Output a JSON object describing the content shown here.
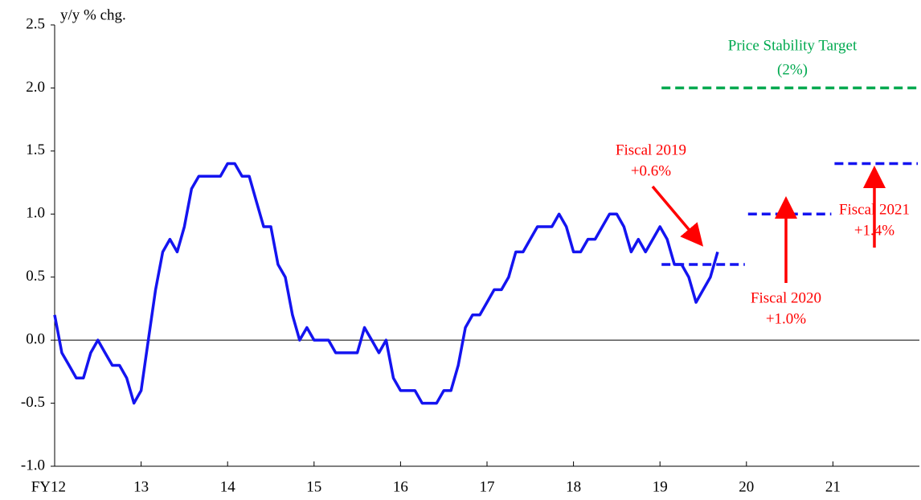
{
  "chart_data": {
    "type": "line",
    "y_label": "y/y % chg.",
    "x": [
      12,
      12.083,
      12.167,
      12.25,
      12.333,
      12.417,
      12.5,
      12.583,
      12.667,
      12.75,
      12.833,
      12.917,
      13,
      13.083,
      13.167,
      13.25,
      13.333,
      13.417,
      13.5,
      13.583,
      13.667,
      13.75,
      13.833,
      13.917,
      14,
      14.083,
      14.167,
      14.25,
      14.333,
      14.417,
      14.5,
      14.583,
      14.667,
      14.75,
      14.833,
      14.917,
      15,
      15.083,
      15.167,
      15.25,
      15.333,
      15.417,
      15.5,
      15.583,
      15.667,
      15.75,
      15.833,
      15.917,
      16,
      16.083,
      16.167,
      16.25,
      16.333,
      16.417,
      16.5,
      16.583,
      16.667,
      16.75,
      16.833,
      16.917,
      17,
      17.083,
      17.167,
      17.25,
      17.333,
      17.417,
      17.5,
      17.583,
      17.667,
      17.75,
      17.833,
      17.917,
      18,
      18.083,
      18.167,
      18.25,
      18.333,
      18.417,
      18.5,
      18.583,
      18.667,
      18.75,
      18.833,
      18.917,
      19,
      19.083,
      19.167,
      19.25,
      19.333,
      19.417,
      19.5,
      19.583,
      19.667
    ],
    "series": [
      {
        "color": "#1414f0",
        "values": [
          0.2,
          -0.1,
          -0.2,
          -0.3,
          -0.3,
          -0.1,
          0.0,
          -0.1,
          -0.2,
          -0.2,
          -0.3,
          -0.5,
          -0.4,
          0.0,
          0.4,
          0.7,
          0.8,
          0.7,
          0.9,
          1.2,
          1.3,
          1.3,
          1.3,
          1.3,
          1.4,
          1.4,
          1.3,
          1.3,
          1.1,
          0.9,
          0.9,
          0.6,
          0.5,
          0.2,
          0.0,
          0.1,
          0.0,
          0.0,
          0.0,
          -0.1,
          -0.1,
          -0.1,
          -0.1,
          0.1,
          0.0,
          -0.1,
          0.0,
          -0.3,
          -0.4,
          -0.4,
          -0.4,
          -0.5,
          -0.5,
          -0.5,
          -0.4,
          -0.4,
          -0.2,
          0.1,
          0.2,
          0.2,
          0.3,
          0.4,
          0.4,
          0.5,
          0.7,
          0.7,
          0.8,
          0.9,
          0.9,
          0.9,
          1.0,
          0.9,
          0.7,
          0.7,
          0.8,
          0.8,
          0.9,
          1.0,
          1.0,
          0.9,
          0.7,
          0.8,
          0.7,
          0.8,
          0.9,
          0.8,
          0.6,
          0.6,
          0.5,
          0.3,
          0.4,
          0.5,
          0.7
        ]
      }
    ],
    "target": {
      "text": "Price Stability Target",
      "value_label": "(2%)",
      "value": 2,
      "x": [
        19,
        22
      ],
      "color": "#00a94f"
    },
    "forecasts": [
      {
        "text": "Fiscal 2019",
        "value_label": "+0.6%",
        "value": 0.6,
        "x": [
          19,
          20
        ]
      },
      {
        "text": "Fiscal 2020",
        "value_label": "+1.0%",
        "value": 1.0,
        "x": [
          20,
          21
        ]
      },
      {
        "text": "Fiscal 2021",
        "value_label": "+1.4%",
        "value": 1.4,
        "x": [
          21,
          22
        ]
      }
    ],
    "forecast_color": "#1414f0",
    "annotation_color": "#ff0000",
    "xlim": [
      12,
      22
    ],
    "xticks": [
      {
        "value": 12,
        "label": "FY12"
      },
      13,
      14,
      15,
      16,
      17,
      18,
      19,
      20,
      21
    ],
    "ylim": [
      -1.0,
      2.5
    ],
    "yticks": [
      2.5,
      {
        "value": 2,
        "label": "2.0"
      },
      1.5,
      {
        "value": 1,
        "label": "1.0"
      },
      0.5,
      {
        "value": 0,
        "label": "0.0"
      },
      -0.5,
      {
        "value": -1,
        "label": "-1.0"
      }
    ]
  }
}
